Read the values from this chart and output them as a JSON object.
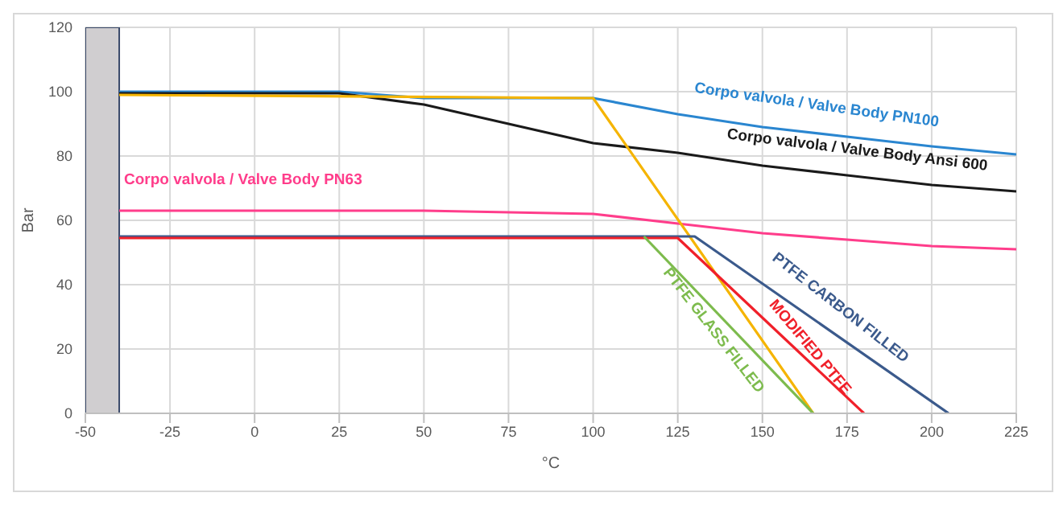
{
  "chart_data": {
    "type": "line",
    "xlabel": "°C",
    "ylabel": "Bar",
    "xlim": [
      -50,
      225
    ],
    "xticks": [
      -50,
      -25,
      0,
      25,
      50,
      75,
      100,
      125,
      150,
      175,
      200,
      225
    ],
    "ylim": [
      0,
      120
    ],
    "yticks": [
      0,
      20,
      40,
      60,
      80,
      100,
      120
    ],
    "grid": true,
    "legend": false,
    "marker": "none",
    "line_style": "solid",
    "bands": [
      {
        "axis": "x",
        "from": -50,
        "to": -40,
        "color": "#d0ced0"
      }
    ],
    "series": [
      {
        "name": "Corpo valvola / Valve Body PN100",
        "color": "#2a86d0",
        "x": [
          -40,
          25,
          50,
          100,
          125,
          150,
          175,
          200,
          225
        ],
        "values": [
          100,
          100,
          98,
          98,
          93,
          89,
          86,
          83,
          80.5
        ]
      },
      {
        "name": "Corpo valvola / Valve Body Ansi 600",
        "color": "#1a1a1a",
        "x": [
          -40,
          25,
          50,
          75,
          100,
          125,
          150,
          175,
          200,
          225
        ],
        "values": [
          99.5,
          99.5,
          96,
          90,
          84,
          81,
          77,
          74,
          71,
          69
        ]
      },
      {
        "name": "Corpo valvola / Valve Body PN63",
        "color": "#ff3d8b",
        "x": [
          -40,
          50,
          100,
          125,
          150,
          175,
          200,
          225
        ],
        "values": [
          63,
          63,
          62,
          59,
          56,
          54,
          52,
          51
        ]
      },
      {
        "color": "#f5b400",
        "x": [
          -40,
          100,
          165
        ],
        "values": [
          99,
          98,
          0
        ]
      },
      {
        "name": "PTFE CARBON FILLED",
        "color": "#3b5a8c",
        "x": [
          -40,
          130,
          205
        ],
        "values": [
          55,
          55,
          0
        ]
      },
      {
        "name": "MODIFIED PTFE",
        "color": "#f0202a",
        "x": [
          -40,
          125,
          180
        ],
        "values": [
          54.5,
          54.5,
          0
        ]
      },
      {
        "name": "PTFE GLASS FILLED",
        "color": "#7dbb4d",
        "x": [
          115,
          165
        ],
        "values": [
          55,
          0
        ]
      }
    ]
  }
}
